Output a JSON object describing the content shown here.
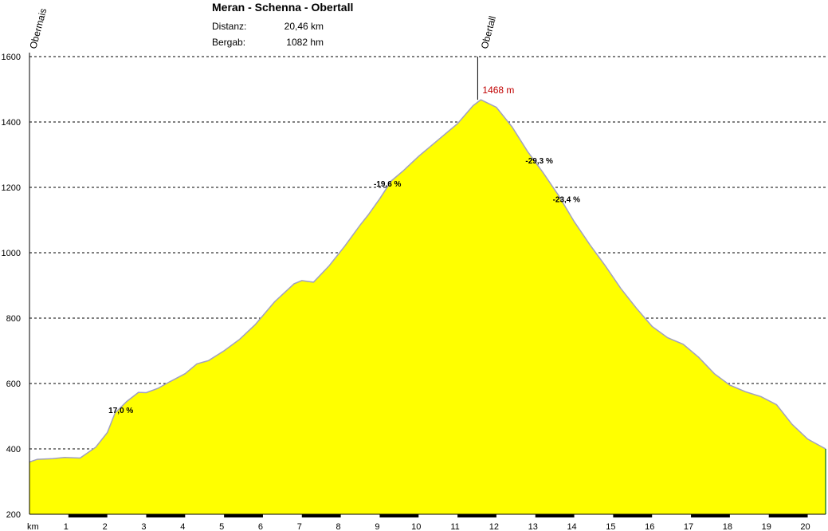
{
  "header": {
    "title": "Meran - Schenna - Obertall",
    "rows": [
      {
        "label": "Distanz:",
        "value": "20,46 km"
      },
      {
        "label": "Bergab:",
        "value": "1082 hm"
      }
    ]
  },
  "chart_data": {
    "type": "area",
    "x_unit_label": "km",
    "xlim": [
      0,
      20.46
    ],
    "ylim": [
      200,
      1600
    ],
    "y_ticks": [
      200,
      400,
      600,
      800,
      1000,
      1200,
      1400,
      1600
    ],
    "x_ticks": [
      1,
      2,
      3,
      4,
      5,
      6,
      7,
      8,
      9,
      10,
      11,
      12,
      13,
      14,
      15,
      16,
      17,
      18,
      19,
      20
    ],
    "grid": true,
    "fill_color": "#ffff00",
    "line_color": "#a0a0c0",
    "profile": {
      "x": [
        0,
        0.2,
        0.6,
        0.9,
        1.3,
        1.7,
        2.0,
        2.2,
        2.5,
        2.8,
        3.0,
        3.3,
        3.6,
        4.0,
        4.3,
        4.6,
        5.0,
        5.4,
        5.8,
        6.3,
        6.8,
        7.0,
        7.3,
        7.7,
        8.1,
        8.5,
        8.7,
        9.0,
        9.3,
        9.6,
        10.0,
        10.5,
        11.0,
        11.4,
        11.6,
        12.0,
        12.4,
        12.8,
        13.2,
        13.6,
        14.0,
        14.4,
        14.8,
        15.2,
        15.6,
        16.0,
        16.4,
        16.8,
        17.2,
        17.6,
        18.0,
        18.4,
        18.8,
        19.2,
        19.6,
        20.0,
        20.46
      ],
      "y": [
        360,
        368,
        370,
        374,
        372,
        405,
        450,
        510,
        545,
        573,
        572,
        585,
        605,
        630,
        660,
        670,
        700,
        735,
        780,
        850,
        905,
        915,
        910,
        960,
        1020,
        1085,
        1115,
        1165,
        1220,
        1250,
        1295,
        1345,
        1395,
        1450,
        1468,
        1445,
        1385,
        1310,
        1245,
        1175,
        1095,
        1025,
        960,
        890,
        830,
        775,
        740,
        720,
        680,
        630,
        595,
        575,
        560,
        535,
        475,
        430,
        400
      ]
    },
    "top_markers": [
      {
        "label": "Obermais",
        "x": 0
      },
      {
        "label": "Obertall",
        "x": 11.6
      }
    ],
    "peak_label": {
      "text": "1468 m",
      "x": 11.6,
      "y": 1468,
      "color": "#c00000"
    },
    "annotations": [
      {
        "text": "17,0 %",
        "x": 2.35,
        "y": 510
      },
      {
        "text": "-19,6 %",
        "x": 9.2,
        "y": 1203
      },
      {
        "text": "-29,3 %",
        "x": 13.1,
        "y": 1273
      },
      {
        "text": "-23,4 %",
        "x": 13.8,
        "y": 1155
      }
    ]
  }
}
